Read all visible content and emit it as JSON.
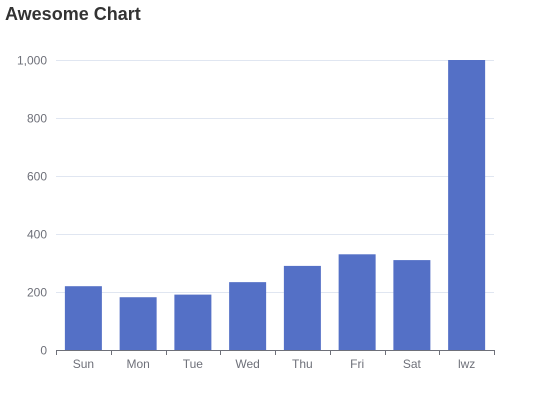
{
  "chart_data": {
    "type": "bar",
    "title": "Awesome Chart",
    "categories": [
      "Sun",
      "Mon",
      "Tue",
      "Wed",
      "Thu",
      "Fri",
      "Sat",
      "lwz"
    ],
    "values": [
      220,
      182,
      191,
      234,
      290,
      330,
      310,
      1000
    ],
    "ylim": [
      0,
      1000
    ],
    "yticks": [
      0,
      200,
      400,
      600,
      800,
      1000
    ],
    "ytick_labels": [
      "0",
      "200",
      "400",
      "600",
      "800",
      "1,000"
    ],
    "xlabel": "",
    "ylabel": "",
    "grid": true,
    "bar_color": "#5470c6",
    "grid_color": "#e0e6f1",
    "axis_color": "#6e7079"
  }
}
